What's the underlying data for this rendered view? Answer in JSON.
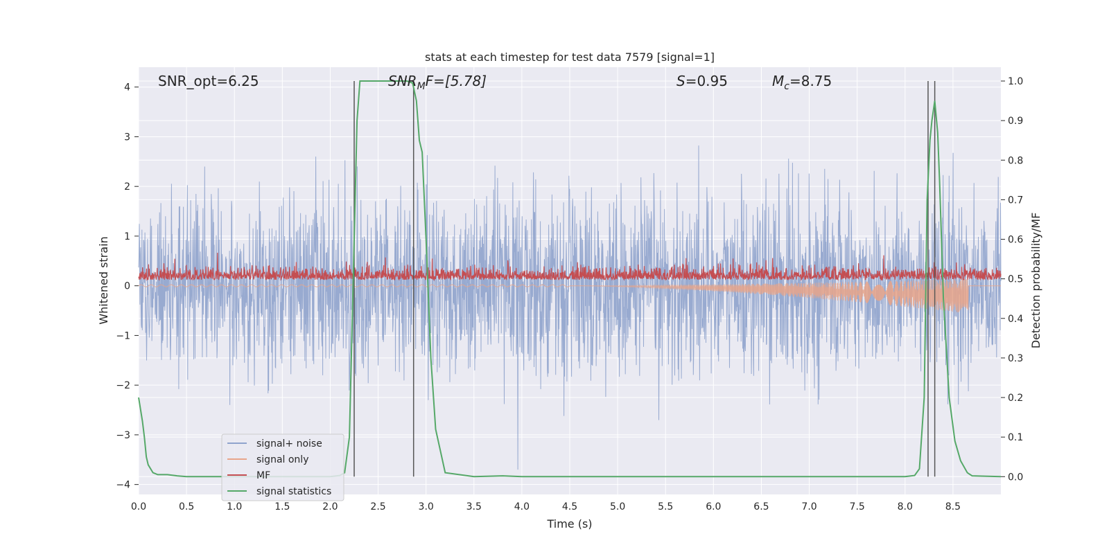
{
  "chart_data": {
    "type": "line",
    "title": "stats at each timestep for test data 7579 [signal=1]",
    "xlabel": "Time (s)",
    "ylabel_left": "Whitened strain",
    "ylabel_right": "Detection probability/MF",
    "xlim": [
      0.0,
      9.0
    ],
    "ylim_left": [
      -4.2,
      4.4
    ],
    "ylim_right": [
      -0.045,
      1.035
    ],
    "grid": true,
    "legend_position": "lower-left",
    "x_ticks": [
      "0.0",
      "0.5",
      "1.0",
      "1.5",
      "2.0",
      "2.5",
      "3.0",
      "3.5",
      "4.0",
      "4.5",
      "5.0",
      "5.5",
      "6.0",
      "6.5",
      "7.0",
      "7.5",
      "8.0",
      "8.5"
    ],
    "x_tick_values": [
      0.0,
      0.5,
      1.0,
      1.5,
      2.0,
      2.5,
      3.0,
      3.5,
      4.0,
      4.5,
      5.0,
      5.5,
      6.0,
      6.5,
      7.0,
      7.5,
      8.0,
      8.5
    ],
    "y_ticks_left": [
      "4",
      "3",
      "2",
      "1",
      "0",
      "−1",
      "−2",
      "−3",
      "−4"
    ],
    "y_tick_values_left": [
      4,
      3,
      2,
      1,
      0,
      -1,
      -2,
      -3,
      -4
    ],
    "y_ticks_right": [
      "1.0",
      "0.9",
      "0.8",
      "0.7",
      "0.6",
      "0.5",
      "0.4",
      "0.3",
      "0.2",
      "0.1",
      "0.0"
    ],
    "y_tick_values_right": [
      1.0,
      0.9,
      0.8,
      0.7,
      0.6,
      0.5,
      0.4,
      0.3,
      0.2,
      0.1,
      0.0
    ],
    "annotations": {
      "snr_opt": "SNR_opt=6.25",
      "snr_mf_italic": "SNR",
      "snr_mf_sub": "M",
      "snr_mf_rest": "F=[5.78]",
      "s_italic": "S",
      "s_rest": "=0.95",
      "mc_italic": "M",
      "mc_sub": "c",
      "mc_rest": "=8.75"
    },
    "vertical_lines_x": [
      2.25,
      2.87,
      8.24,
      8.31
    ],
    "series": [
      {
        "name": "signal+ noise",
        "color": "#8fa3cc",
        "kind": "noise",
        "sigma": 0.9,
        "range": [
          -3.7,
          3.5
        ]
      },
      {
        "name": "signal only",
        "color": "#e8a58a",
        "kind": "chirp",
        "start": 4.5,
        "end": 8.66,
        "max_amp": 0.35
      },
      {
        "name": "MF",
        "color": "#c44e52",
        "kind": "mf",
        "center": 0.17,
        "amp": 0.17
      },
      {
        "name": "signal statistics",
        "color": "#55a868",
        "kind": "prob",
        "x": [
          0.0,
          0.04,
          0.06,
          0.08,
          0.1,
          0.15,
          0.2,
          0.3,
          0.4,
          0.5,
          1.0,
          1.5,
          2.0,
          2.1,
          2.15,
          2.2,
          2.25,
          2.28,
          2.31,
          2.35,
          2.5,
          2.8,
          2.86,
          2.9,
          2.93,
          2.96,
          3.0,
          3.05,
          3.1,
          3.2,
          3.5,
          3.8,
          4.0,
          5.0,
          6.0,
          7.0,
          7.5,
          8.0,
          8.1,
          8.15,
          8.2,
          8.23,
          8.26,
          8.28,
          8.31,
          8.34,
          8.36,
          8.4,
          8.46,
          8.52,
          8.58,
          8.65,
          8.7,
          9.0
        ],
        "y": [
          0.2,
          0.14,
          0.1,
          0.05,
          0.03,
          0.01,
          0.005,
          0.005,
          0.002,
          0.0,
          0.0,
          0.0,
          0.0,
          0.003,
          0.01,
          0.1,
          0.6,
          0.9,
          1.0,
          1.0,
          1.0,
          1.0,
          0.995,
          0.95,
          0.85,
          0.82,
          0.6,
          0.3,
          0.12,
          0.01,
          0.0,
          0.002,
          0.0,
          0.0,
          0.0,
          0.0,
          0.0,
          0.0,
          0.003,
          0.02,
          0.2,
          0.7,
          0.85,
          0.9,
          0.95,
          0.87,
          0.75,
          0.45,
          0.2,
          0.09,
          0.04,
          0.01,
          0.002,
          0.0
        ]
      }
    ]
  }
}
